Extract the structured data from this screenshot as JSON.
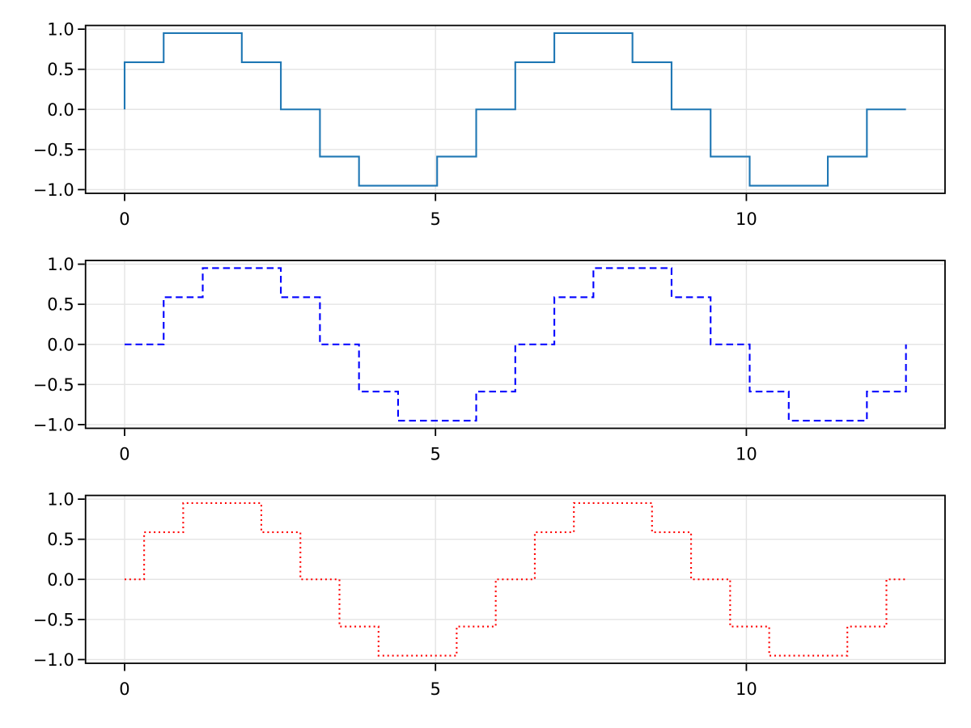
{
  "figure": {
    "background": "#ffffff",
    "text_color": "#000000",
    "spine_color": "#000000",
    "grid_color": "#e4e4e4",
    "grid_on": true
  },
  "chart_data": [
    {
      "type": "line",
      "subtype": "step",
      "where": "pre",
      "line_style": "solid",
      "color": "#1f77b4",
      "title": "",
      "xlabel": "",
      "ylabel": "",
      "xlim": [
        -0.6283,
        13.1947
      ],
      "ylim": [
        -1.0462,
        1.0462
      ],
      "xticks": [
        {
          "value": 0,
          "label": "0"
        },
        {
          "value": 5,
          "label": "5"
        },
        {
          "value": 10,
          "label": "10"
        }
      ],
      "yticks": [
        {
          "value": -1.0,
          "label": "−1.0"
        },
        {
          "value": -0.5,
          "label": "−0.5"
        },
        {
          "value": 0.0,
          "label": "0.0"
        },
        {
          "value": 0.5,
          "label": "0.5"
        },
        {
          "value": 1.0,
          "label": "1.0"
        }
      ],
      "x": [
        0,
        0.6283,
        1.2566,
        1.885,
        2.5133,
        3.1416,
        3.7699,
        4.3982,
        5.0265,
        5.6549,
        6.2832,
        6.9115,
        7.5398,
        8.1681,
        8.7965,
        9.4248,
        10.0531,
        10.6814,
        11.3097,
        11.9381,
        12.5664
      ],
      "y": [
        0,
        0.5878,
        0.9511,
        0.9511,
        0.5878,
        0,
        -0.5878,
        -0.9511,
        -0.9511,
        -0.5878,
        0,
        0.5878,
        0.9511,
        0.9511,
        0.5878,
        0,
        -0.5878,
        -0.9511,
        -0.9511,
        -0.5878,
        0
      ]
    },
    {
      "type": "line",
      "subtype": "step",
      "where": "post",
      "line_style": "dashed",
      "color": "#0000ff",
      "title": "",
      "xlabel": "",
      "ylabel": "",
      "xlim": [
        -0.6283,
        13.1947
      ],
      "ylim": [
        -1.0462,
        1.0462
      ],
      "xticks": [
        {
          "value": 0,
          "label": "0"
        },
        {
          "value": 5,
          "label": "5"
        },
        {
          "value": 10,
          "label": "10"
        }
      ],
      "yticks": [
        {
          "value": -1.0,
          "label": "−1.0"
        },
        {
          "value": -0.5,
          "label": "−0.5"
        },
        {
          "value": 0.0,
          "label": "0.0"
        },
        {
          "value": 0.5,
          "label": "0.5"
        },
        {
          "value": 1.0,
          "label": "1.0"
        }
      ],
      "x": [
        0,
        0.6283,
        1.2566,
        1.885,
        2.5133,
        3.1416,
        3.7699,
        4.3982,
        5.0265,
        5.6549,
        6.2832,
        6.9115,
        7.5398,
        8.1681,
        8.7965,
        9.4248,
        10.0531,
        10.6814,
        11.3097,
        11.9381,
        12.5664
      ],
      "y": [
        0,
        0.5878,
        0.9511,
        0.9511,
        0.5878,
        0,
        -0.5878,
        -0.9511,
        -0.9511,
        -0.5878,
        0,
        0.5878,
        0.9511,
        0.9511,
        0.5878,
        0,
        -0.5878,
        -0.9511,
        -0.9511,
        -0.5878,
        0
      ]
    },
    {
      "type": "line",
      "subtype": "step",
      "where": "mid",
      "line_style": "dotted",
      "color": "#ff0000",
      "title": "",
      "xlabel": "",
      "ylabel": "",
      "xlim": [
        -0.6283,
        13.1947
      ],
      "ylim": [
        -1.0462,
        1.0462
      ],
      "xticks": [
        {
          "value": 0,
          "label": "0"
        },
        {
          "value": 5,
          "label": "5"
        },
        {
          "value": 10,
          "label": "10"
        }
      ],
      "yticks": [
        {
          "value": -1.0,
          "label": "−1.0"
        },
        {
          "value": -0.5,
          "label": "−0.5"
        },
        {
          "value": 0.0,
          "label": "0.0"
        },
        {
          "value": 0.5,
          "label": "0.5"
        },
        {
          "value": 1.0,
          "label": "1.0"
        }
      ],
      "x": [
        0,
        0.6283,
        1.2566,
        1.885,
        2.5133,
        3.1416,
        3.7699,
        4.3982,
        5.0265,
        5.6549,
        6.2832,
        6.9115,
        7.5398,
        8.1681,
        8.7965,
        9.4248,
        10.0531,
        10.6814,
        11.3097,
        11.9381,
        12.5664
      ],
      "y": [
        0,
        0.5878,
        0.9511,
        0.9511,
        0.5878,
        0,
        -0.5878,
        -0.9511,
        -0.9511,
        -0.5878,
        0,
        0.5878,
        0.9511,
        0.9511,
        0.5878,
        0,
        -0.5878,
        -0.9511,
        -0.9511,
        -0.5878,
        0
      ]
    }
  ]
}
